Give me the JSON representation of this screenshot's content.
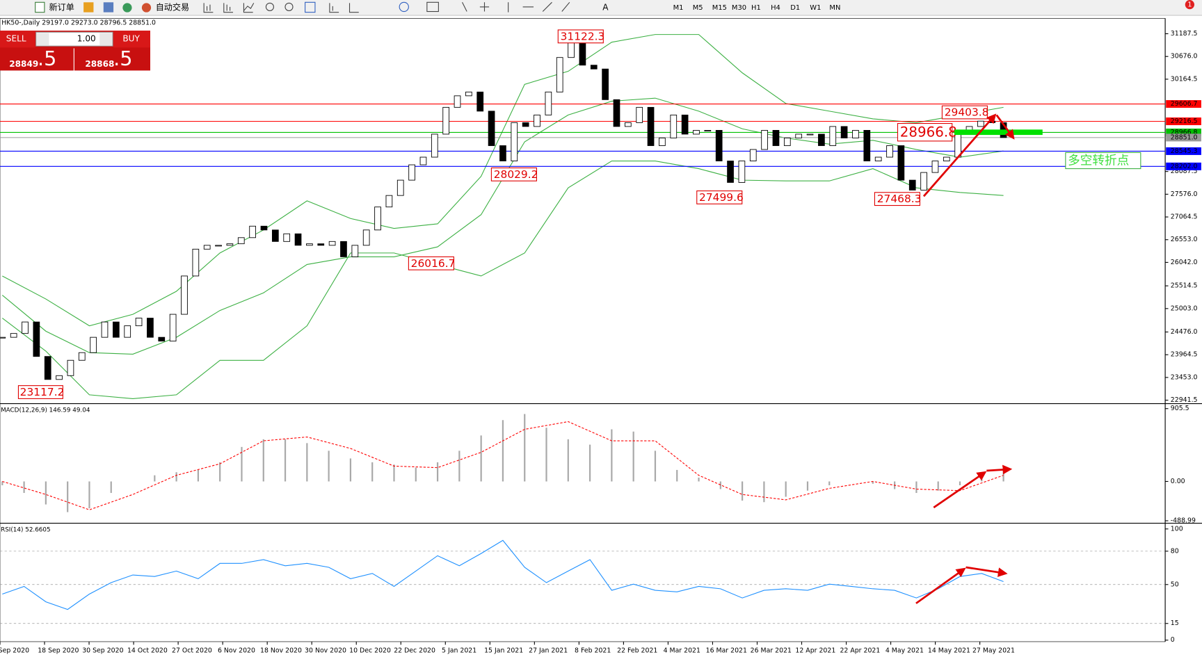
{
  "toolbar": {
    "new_order": "新订单",
    "auto_trading": "自动交易",
    "timeframes": [
      "M1",
      "M5",
      "M15",
      "M30",
      "H1",
      "H4",
      "D1",
      "W1",
      "MN"
    ],
    "badge": "1"
  },
  "trade_panel": {
    "sell": "SELL",
    "buy": "BUY",
    "volume": "1.00",
    "bid_main": "28849",
    "bid_big": ".5",
    "ask_main": "28868",
    "ask_big": ".5"
  },
  "chart_data": [
    {
      "type": "candlestick",
      "title": "HK50-,Daily 29197.0 29273.0 28796.5 28851.0",
      "date_labels": [
        "Sep 2020",
        "18 Sep 2020",
        "30 Sep 2020",
        "14 Oct 2020",
        "27 Oct 2020",
        "6 Nov 2020",
        "18 Nov 2020",
        "30 Nov 2020",
        "10 Dec 2020",
        "22 Dec 2020",
        "5 Jan 2021",
        "15 Jan 2021",
        "27 Jan 2021",
        "8 Feb 2021",
        "22 Feb 2021",
        "4 Mar 2021",
        "16 Mar 2021",
        "26 Mar 2021",
        "12 Apr 2021",
        "22 Apr 2021",
        "4 May 2021",
        "14 May 2021",
        "27 May 2021"
      ],
      "closes": [
        24356.5,
        24442.8,
        24701.5,
        23925.3,
        23407.8,
        23494,
        23839,
        24011.5,
        24356.5,
        24701.5,
        24356.5,
        24615.3,
        24787.8,
        24356.5,
        24270.3,
        24874,
        25736.5,
        26340.3,
        26426.5,
        26426.5,
        26461,
        26599,
        26857.8,
        26771.5,
        26512.8,
        26685.3,
        26426.5,
        26461,
        26426.5,
        26512.8,
        26167.8,
        26426.5,
        26771.5,
        27289,
        27547.8,
        27892.8,
        28237.8,
        28410.3,
        28927.8,
        29531.5,
        29790.3,
        29876.5,
        29445.3,
        28669,
        28324,
        29186.5,
        29100.3,
        29359,
        29876.5,
        30652.8,
        30997.8,
        30480.3,
        30394,
        29704,
        29100.3,
        29186.5,
        29531.5,
        28669,
        28841.5,
        29359,
        28927.8,
        29014,
        29014,
        28324,
        27841,
        28324,
        28582.8,
        29014,
        28669,
        28841.5,
        28927.8,
        28927.8,
        28669,
        29100.3,
        28841.5,
        29014,
        28324,
        28410.3,
        28669,
        27892.8,
        27668.5,
        28065.3,
        28324,
        28410.3,
        28927.8,
        29100.3,
        29221,
        29186.5,
        28851
      ],
      "up_color": "#ffffff",
      "down_color": "#000000",
      "band_color": "#3cb043",
      "bands": {
        "upper": [
          25736.5,
          25219,
          24615.3,
          24874,
          25391.5,
          26254,
          26771.5,
          27427,
          27030.3,
          26806,
          26909.5,
          27979,
          30049,
          30342.3,
          30997.8,
          31170.3,
          31170.3,
          30307.8,
          29617.8,
          29445.3,
          29272.8,
          29186.5,
          29359,
          29531.5
        ],
        "middle": [
          25305.3,
          24494.5,
          24011.5,
          23977,
          24356.5,
          24960.3,
          25357,
          25995.3,
          26167.8,
          26167.8,
          26392,
          27116.5,
          28755.3,
          29359,
          29669.5,
          29738.5,
          29445.3,
          29048.5,
          28841.5,
          28703.5,
          28789.8,
          28582.8,
          28410.3,
          28548.3
        ],
        "lower": [
          24787.8,
          24046,
          23062.8,
          22976.5,
          23062.8,
          23839,
          23839,
          24615.3,
          26254,
          26254,
          25995.3,
          25736.5,
          26254,
          27720.3,
          28324,
          28324,
          28151.5,
          27892.8,
          27875.5,
          27875.5,
          28151.5,
          27720.3,
          27616.8,
          27547.8
        ]
      },
      "levels": [
        {
          "value": 29606.7,
          "color": "#ff0000"
        },
        {
          "value": 29216.5,
          "color": "#ff0000"
        },
        {
          "value": 28966.8,
          "color": "#00c000"
        },
        {
          "value": 28851,
          "label": "28851.0",
          "color": "#9a9a9a"
        },
        {
          "value": 28545.3,
          "color": "#0000ff"
        },
        {
          "value": 28202,
          "label": "28202.0",
          "color": "#0000ff"
        }
      ],
      "ylim": [
        22872.5,
        31532.5
      ],
      "yticks": [
        31187.5,
        {
          "value": 30676,
          "label": "30676.0"
        },
        30164.5,
        28087.5,
        {
          "value": 27576,
          "label": "27576.0"
        },
        27064.5,
        {
          "value": 26553,
          "label": "26553.0"
        },
        {
          "value": 26042,
          "label": "26042.0"
        },
        25514.5,
        {
          "value": 25003,
          "label": "25003.0"
        },
        {
          "value": 24476,
          "label": "24476.0"
        },
        23964.5,
        {
          "value": 23453,
          "label": "23453.0"
        },
        22941.5
      ],
      "annotations": [
        31122.3,
        28029.2,
        27499.6,
        27468.3,
        26016.7,
        23117.2,
        29403.8,
        28966.8
      ],
      "note": "多空转折点"
    },
    {
      "type": "macd",
      "title": "MACD(12,26,9) 146.59 49.04",
      "hist_color": "#a9a9a9",
      "signal_color": "#ff0000",
      "histogram": [
        -47.7,
        -143,
        -286,
        -381.3,
        -333.6,
        -143,
        0,
        76.3,
        114.4,
        143,
        238.3,
        428.9,
        524.3,
        524.3,
        476.6,
        381.3,
        286,
        238.3,
        209.7,
        171.6,
        238.3,
        381.3,
        571.9,
        762.6,
        838.8,
        667.2,
        524.3,
        457.5,
        648.2,
        619.6,
        381.3,
        143,
        47.7,
        -95.3,
        -238.3,
        -257.4,
        -190.6,
        -114.4,
        -47.7,
        0,
        -28.6,
        -95.3,
        -143,
        -114.4,
        -47.7,
        47.7,
        114.4
      ],
      "signal": [
        0,
        -162,
        -352.7,
        -162,
        76.3,
        219.2,
        505.2,
        552.9,
        409.9,
        190.6,
        171.6,
        362.2,
        648.2,
        743.5,
        505.2,
        505.2,
        76.3,
        -162,
        -228.8,
        -85.8,
        0,
        -95.3,
        -114.4,
        76.3
      ],
      "ylim": [
        -495.7,
        953.2
      ],
      "yticks": [
        905.5,
        {
          "value": 0,
          "label": "0.00"
        },
        -488.99
      ]
    },
    {
      "type": "rsi",
      "title": "RSI(14) 52.6605",
      "color": "#1e90ff",
      "values": [
        41.4,
        48.3,
        34.5,
        27.6,
        41.4,
        51.7,
        58.6,
        57.2,
        62.1,
        55.2,
        69,
        69,
        72.4,
        66.9,
        69,
        65.5,
        55.2,
        60,
        48.3,
        62.1,
        75.9,
        66.9,
        77.9,
        89.7,
        65.5,
        51.7,
        62.1,
        72.4,
        44.8,
        50.3,
        44.8,
        43.4,
        48.3,
        46.2,
        37.9,
        44.8,
        46.2,
        44.8,
        50.3,
        48.3,
        46.2,
        44.8,
        37.9,
        46.2,
        57.2,
        60,
        52.7
      ],
      "ylim": [
        0,
        104.1
      ],
      "yticks": [
        100,
        80,
        50,
        15,
        0
      ]
    }
  ]
}
